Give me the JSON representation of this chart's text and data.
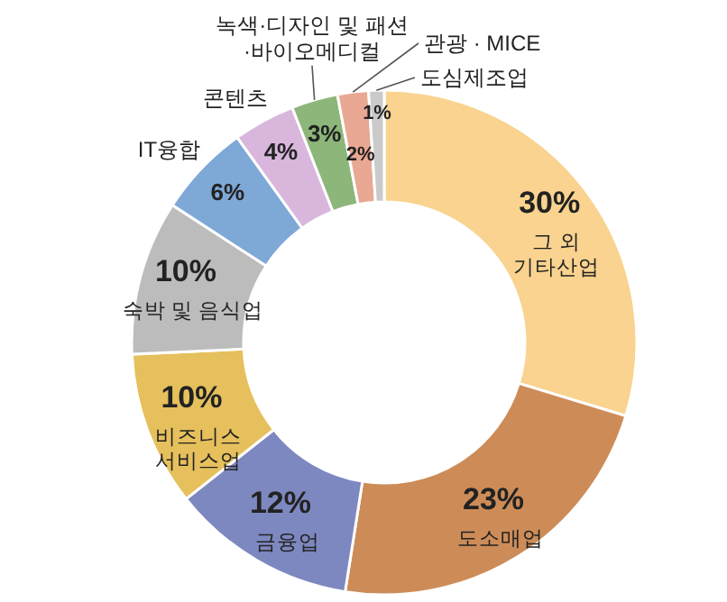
{
  "chart_data": {
    "type": "donut",
    "categories": [
      "그 외\n기타산업",
      "도소매업",
      "금융업",
      "비즈니스\n서비스업",
      "숙박 및 음식업",
      "IT융합",
      "콘텐츠",
      "녹색·디자인 및 패션\n·바이오메디컬",
      "관광 · MICE",
      "도심제조업"
    ],
    "values": [
      30,
      23,
      12,
      10,
      10,
      6,
      4,
      3,
      2,
      1
    ],
    "value_labels": [
      "30%",
      "23%",
      "12%",
      "10%",
      "10%",
      "6%",
      "4%",
      "3%",
      "2%",
      "1%"
    ],
    "colors": [
      "#f9d38f",
      "#cd8c57",
      "#7e88c0",
      "#e6c05c",
      "#bcbcbc",
      "#7ea8d6",
      "#d9b7dd",
      "#8db67a",
      "#e9a893",
      "#cacaca"
    ]
  }
}
